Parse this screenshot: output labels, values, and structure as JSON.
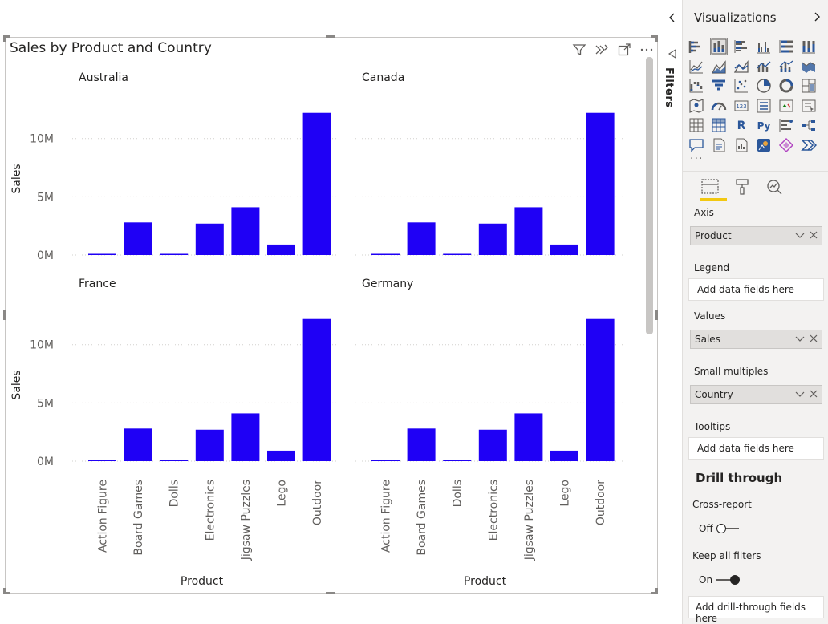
{
  "visual": {
    "title": "Sales by Product and Country"
  },
  "chart_data": {
    "type": "bar",
    "small_multiples": [
      "Australia",
      "Canada",
      "France",
      "Germany"
    ],
    "categories": [
      "Action Figure",
      "Board Games",
      "Dolls",
      "Electronics",
      "Jigsaw Puzzles",
      "Lego",
      "Outdoor"
    ],
    "values": [
      0.1,
      2.8,
      0.1,
      2.7,
      4.1,
      0.9,
      12.2
    ],
    "value_unit": "M",
    "yticks": [
      "0M",
      "5M",
      "10M"
    ],
    "ylim": [
      0,
      12.8
    ],
    "xlabel": "Product",
    "ylabel": "Sales",
    "bar_color": "#1f00f5",
    "grid": true
  },
  "filters": {
    "label": "Filters"
  },
  "viz_pane": {
    "title": "Visualizations",
    "more": "···",
    "icons": [
      "stacked-bar-icon",
      "stacked-column-icon",
      "clustered-bar-icon",
      "clustered-column-icon",
      "100-bar-icon",
      "100-column-icon",
      "line-icon",
      "area-icon",
      "stacked-area-icon",
      "line-column-icon",
      "line-stacked-column-icon",
      "ribbon-icon",
      "waterfall-icon",
      "funnel-icon",
      "scatter-icon",
      "pie-icon",
      "donut-icon",
      "treemap-icon",
      "map-icon",
      "gauge-icon",
      "card-icon",
      "multirow-card-icon",
      "kpi-icon",
      "slicer-icon",
      "table-icon",
      "matrix-icon",
      "r-visual-icon",
      "python-visual-icon",
      "key-influencers-icon",
      "decomposition-tree-icon",
      "qna-icon",
      "smart-narrative-icon",
      "paginated-icon",
      "arcgis-icon",
      "power-apps-icon",
      "power-automate-icon"
    ],
    "r_text": "R",
    "py_text": "Py",
    "wells": {
      "axis": {
        "label": "Axis",
        "field": "Product"
      },
      "legend": {
        "label": "Legend",
        "placeholder": "Add data fields here"
      },
      "values": {
        "label": "Values",
        "field": "Sales"
      },
      "small_multiples": {
        "label": "Small multiples",
        "field": "Country"
      },
      "tooltips": {
        "label": "Tooltips",
        "placeholder": "Add data fields here"
      }
    },
    "drill_through": {
      "title": "Drill through",
      "cross_report": {
        "label": "Cross-report",
        "state": "Off"
      },
      "keep_all_filters": {
        "label": "Keep all filters",
        "state": "On"
      },
      "placeholder": "Add drill-through fields here"
    },
    "accent": "#f2c811"
  }
}
